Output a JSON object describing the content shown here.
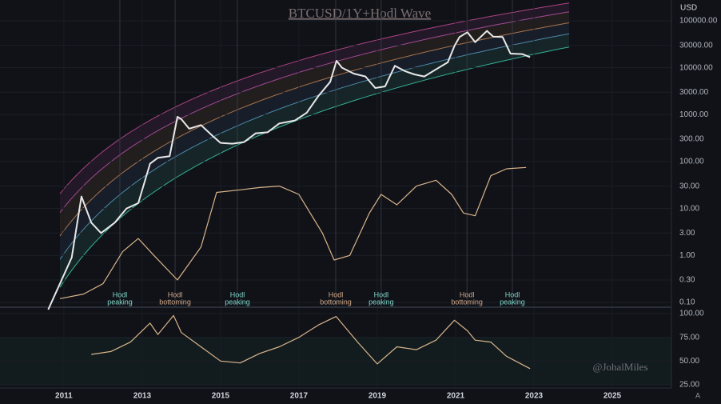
{
  "chart_data": [
    {
      "type": "line",
      "title": "BTCUSD/1Y+Hodl Wave",
      "unit": "USD",
      "log_scale": true,
      "xlim": [
        2009.37,
        2026.51
      ],
      "ylim": [
        0.082,
        277000
      ],
      "yticks": [
        {
          "value": 100000,
          "label": "100000.00"
        },
        {
          "value": 30000,
          "label": "30000.00"
        },
        {
          "value": 10000,
          "label": "10000.00"
        },
        {
          "value": 3000,
          "label": "3000.00"
        },
        {
          "value": 1000,
          "label": "1000.00"
        },
        {
          "value": 300,
          "label": "300.00"
        },
        {
          "value": 100,
          "label": "100.00"
        },
        {
          "value": 30,
          "label": "30.00"
        },
        {
          "value": 10,
          "label": "10.00"
        },
        {
          "value": 3,
          "label": "3.00"
        },
        {
          "value": 1,
          "label": "1.00"
        },
        {
          "value": 0.3,
          "label": "0.30"
        },
        {
          "value": 0.1,
          "label": "0.10"
        }
      ],
      "series": [
        {
          "color": "#e8e8e8",
          "x": [
            2010.6,
            2010.9,
            2011.2,
            2011.45,
            2011.7,
            2011.95,
            2012.3,
            2012.6,
            2012.9,
            2013.2,
            2013.4,
            2013.7,
            2013.9,
            2014.0,
            2014.2,
            2014.5,
            2014.8,
            2015.0,
            2015.3,
            2015.6,
            2015.9,
            2016.2,
            2016.5,
            2016.9,
            2017.2,
            2017.5,
            2017.8,
            2017.96,
            2018.1,
            2018.4,
            2018.7,
            2018.95,
            2019.2,
            2019.45,
            2019.7,
            2019.95,
            2020.2,
            2020.5,
            2020.8,
            2020.97,
            2021.1,
            2021.3,
            2021.5,
            2021.8,
            2021.96,
            2022.2,
            2022.4,
            2022.7,
            2022.9
          ],
          "values": [
            0.07,
            0.25,
            0.9,
            18,
            5,
            3,
            5,
            10,
            13,
            90,
            120,
            130,
            900,
            800,
            500,
            600,
            350,
            250,
            240,
            260,
            400,
            420,
            650,
            750,
            1100,
            2500,
            5000,
            14000,
            10000,
            7500,
            6500,
            3700,
            4000,
            11000,
            8500,
            7200,
            6500,
            9200,
            13000,
            29000,
            45000,
            57000,
            35000,
            61000,
            46000,
            45000,
            20000,
            19500,
            16800
          ]
        },
        {
          "color": "#d9b48a",
          "x": [
            2010.9,
            2011.5,
            2012.0,
            2012.5,
            2012.9,
            2013.3,
            2013.9,
            2014.5,
            2014.9,
            2015.5,
            2016.0,
            2016.5,
            2017.0,
            2017.6,
            2017.9,
            2018.3,
            2018.8,
            2019.1,
            2019.5,
            2020.0,
            2020.5,
            2020.9,
            2021.2,
            2021.5,
            2021.9,
            2022.3,
            2022.8
          ],
          "values": [
            0.12,
            0.15,
            0.25,
            1.2,
            2.3,
            1.0,
            0.3,
            1.5,
            22,
            25,
            28,
            30,
            20,
            3,
            0.8,
            1.0,
            8,
            20,
            12,
            30,
            40,
            20,
            8,
            7,
            50,
            70,
            75
          ]
        }
      ],
      "annotations": [
        {
          "x": 2012.43,
          "lines": [
            "Hodl",
            "peaking"
          ]
        },
        {
          "x": 2013.84,
          "lines": [
            "Hodl",
            "bottoming"
          ]
        },
        {
          "x": 2015.43,
          "lines": [
            "Hodl",
            "peaking"
          ]
        },
        {
          "x": 2017.94,
          "lines": [
            "Hodl",
            "bottoming"
          ]
        },
        {
          "x": 2019.1,
          "lines": [
            "Hodl",
            "peaking"
          ]
        },
        {
          "x": 2021.29,
          "lines": [
            "Hodl",
            "bottoming"
          ]
        },
        {
          "x": 2022.45,
          "lines": [
            "Hodl",
            "peaking"
          ]
        }
      ]
    },
    {
      "type": "line",
      "watermark": "@JohalMiles",
      "button": "A",
      "xlim": [
        2009.37,
        2026.51
      ],
      "ylim": [
        21.6,
        105.9
      ],
      "xticks": [
        2011,
        2013,
        2015,
        2017,
        2019,
        2021,
        2023,
        2025
      ],
      "yticks": [
        {
          "value": 100,
          "label": "100.00"
        },
        {
          "value": 75,
          "label": "75.00"
        },
        {
          "value": 50,
          "label": "50.00"
        },
        {
          "value": 25,
          "label": "25.00"
        }
      ],
      "series": [
        {
          "color": "#d9b48a",
          "x": [
            2011.7,
            2012.2,
            2012.7,
            2013.2,
            2013.4,
            2013.8,
            2014.0,
            2014.5,
            2015.0,
            2015.5,
            2016.0,
            2016.5,
            2017.0,
            2017.5,
            2017.95,
            2018.5,
            2019.0,
            2019.5,
            2020.0,
            2020.5,
            2020.97,
            2021.3,
            2021.5,
            2021.9,
            2022.3,
            2022.9
          ],
          "values": [
            57,
            60,
            70,
            90,
            78,
            98,
            80,
            65,
            50,
            48,
            58,
            65,
            75,
            88,
            97,
            70,
            47,
            65,
            62,
            72,
            93,
            82,
            72,
            70,
            55,
            42
          ]
        }
      ]
    }
  ]
}
